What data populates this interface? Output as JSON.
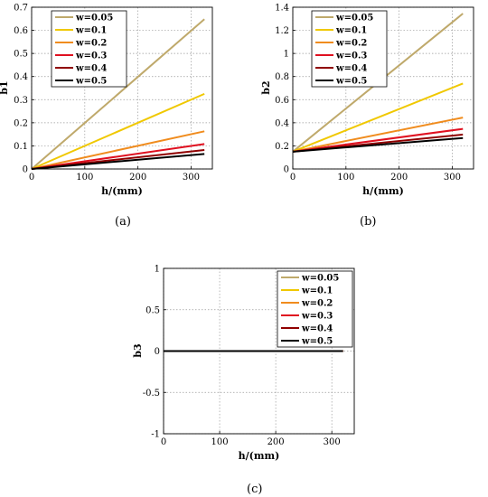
{
  "colors": {
    "w=0.05": "#bfa96b",
    "w=0.1": "#f0c800",
    "w=0.2": "#f08c1e",
    "w=0.3": "#e01020",
    "w=0.4": "#900000",
    "w=0.5": "#000000"
  },
  "captions": [
    "(a)",
    "(b)",
    "(c)"
  ],
  "chart_data": [
    {
      "type": "line",
      "xlabel": "h/(mm)",
      "ylabel": "b1",
      "xlim": [
        0,
        340
      ],
      "ylim": [
        0,
        0.7
      ],
      "xticks": [
        "0",
        "100",
        "200",
        "300"
      ],
      "yticks": [
        "0",
        "0.1",
        "0.2",
        "0.3",
        "0.4",
        "0.5",
        "0.6",
        "0.7"
      ],
      "grid": true,
      "legend": "top-left",
      "series": [
        {
          "name": "w=0.05",
          "x": [
            0,
            325
          ],
          "y": [
            0,
            0.648
          ]
        },
        {
          "name": "w=0.1",
          "x": [
            0,
            325
          ],
          "y": [
            0,
            0.325
          ]
        },
        {
          "name": "w=0.2",
          "x": [
            0,
            325
          ],
          "y": [
            0,
            0.163
          ]
        },
        {
          "name": "w=0.3",
          "x": [
            0,
            325
          ],
          "y": [
            0,
            0.108
          ]
        },
        {
          "name": "w=0.4",
          "x": [
            0,
            325
          ],
          "y": [
            0,
            0.082
          ]
        },
        {
          "name": "w=0.5",
          "x": [
            0,
            325
          ],
          "y": [
            0,
            0.065
          ]
        }
      ]
    },
    {
      "type": "line",
      "xlabel": "h/(mm)",
      "ylabel": "b2",
      "xlim": [
        0,
        340
      ],
      "ylim": [
        0,
        1.4
      ],
      "xticks": [
        "0",
        "100",
        "200",
        "300"
      ],
      "yticks": [
        "0",
        "0.2",
        "0.4",
        "0.6",
        "0.8",
        "1",
        "1.2",
        "1.4"
      ],
      "grid": true,
      "legend": "top-left",
      "series": [
        {
          "name": "w=0.05",
          "x": [
            0,
            320
          ],
          "y": [
            0.15,
            1.345
          ]
        },
        {
          "name": "w=0.1",
          "x": [
            0,
            320
          ],
          "y": [
            0.15,
            0.74
          ]
        },
        {
          "name": "w=0.2",
          "x": [
            0,
            320
          ],
          "y": [
            0.15,
            0.445
          ]
        },
        {
          "name": "w=0.3",
          "x": [
            0,
            320
          ],
          "y": [
            0.15,
            0.347
          ]
        },
        {
          "name": "w=0.4",
          "x": [
            0,
            320
          ],
          "y": [
            0.15,
            0.298
          ]
        },
        {
          "name": "w=0.5",
          "x": [
            0,
            320
          ],
          "y": [
            0.15,
            0.268
          ]
        }
      ]
    },
    {
      "type": "line",
      "xlabel": "h/(mm)",
      "ylabel": "b3",
      "xlim": [
        0,
        340
      ],
      "ylim": [
        -1,
        1
      ],
      "xticks": [
        "0",
        "100",
        "200",
        "300"
      ],
      "yticks": [
        "-1",
        "-0.5",
        "0",
        "0.5",
        "1"
      ],
      "grid": true,
      "legend": "top-right",
      "series": [
        {
          "name": "w=0.05",
          "x": [
            0,
            320
          ],
          "y": [
            0,
            0
          ]
        },
        {
          "name": "w=0.1",
          "x": [
            0,
            320
          ],
          "y": [
            0,
            0
          ]
        },
        {
          "name": "w=0.2",
          "x": [
            0,
            320
          ],
          "y": [
            0,
            0
          ]
        },
        {
          "name": "w=0.3",
          "x": [
            0,
            320
          ],
          "y": [
            0,
            0
          ]
        },
        {
          "name": "w=0.4",
          "x": [
            0,
            320
          ],
          "y": [
            0,
            0
          ]
        },
        {
          "name": "w=0.5",
          "x": [
            0,
            320
          ],
          "y": [
            0,
            0
          ]
        }
      ]
    }
  ]
}
